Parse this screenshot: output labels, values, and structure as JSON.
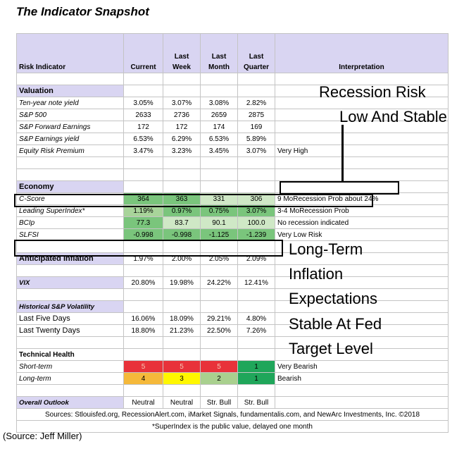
{
  "title": "The Indicator Snapshot",
  "source_note": "(Source: Jeff Miller)",
  "headers": {
    "risk_indicator": "Risk Indicator",
    "current": "Current",
    "last_week": [
      "Last",
      "Week"
    ],
    "last_month": [
      "Last",
      "Month"
    ],
    "last_quarter": [
      "Last",
      "Quarter"
    ],
    "interpretation": "Interpretation"
  },
  "sections": {
    "valuation": "Valuation",
    "economy": "Economy",
    "anticipated_inflation": "Anticipated Inflation",
    "vix": "VIX",
    "historical_volatility": "Historical S&P Volatility",
    "technical_health": "Technical Health",
    "overall_outlook": "Overall Outlook"
  },
  "valuation_rows": [
    {
      "label": "Ten-year note yield",
      "current": "3.05%",
      "week": "3.07%",
      "month": "3.08%",
      "quarter": "2.82%",
      "interp": ""
    },
    {
      "label": "S&P 500",
      "current": "2633",
      "week": "2736",
      "month": "2659",
      "quarter": "2875",
      "interp": ""
    },
    {
      "label": "S&P Forward Earnings",
      "current": "172",
      "week": "172",
      "month": "174",
      "quarter": "169",
      "interp": ""
    },
    {
      "label": "S&P Earnings yield",
      "current": "6.53%",
      "week": "6.29%",
      "month": "6.53%",
      "quarter": "5.89%",
      "interp": ""
    },
    {
      "label": "Equity Risk Premium",
      "current": "3.47%",
      "week": "3.23%",
      "month": "3.45%",
      "quarter": "3.07%",
      "interp": "Very High"
    }
  ],
  "economy_rows": [
    {
      "label": "C-Score",
      "current": "364",
      "week": "363",
      "month": "331",
      "quarter": "306",
      "interp": "9 MoRecession Prob about 24%"
    },
    {
      "label": "Leading SuperIndex*",
      "current": "1.19%",
      "week": "0.97%",
      "month": "0.75%",
      "quarter": "3.07%",
      "interp": "3-4 MoRecession Prob"
    },
    {
      "label": "BCIp",
      "current": "77.3",
      "week": "83.7",
      "month": "90.1",
      "quarter": "100.0",
      "interp": "No recession indicated"
    },
    {
      "label": "SLFSI",
      "current": "-0.998",
      "week": "-0.998",
      "month": "-1.125",
      "quarter": "-1.239",
      "interp": "Very Low Risk"
    }
  ],
  "inflation_row": {
    "current": "1.97%",
    "week": "2.00%",
    "month": "2.05%",
    "quarter": "2.09%"
  },
  "vix_row": {
    "current": "20.80%",
    "week": "19.98%",
    "month": "24.22%",
    "quarter": "12.41%"
  },
  "volatility_rows": [
    {
      "label": "Last Five Days",
      "current": "16.06%",
      "week": "18.09%",
      "month": "29.21%",
      "quarter": "4.80%"
    },
    {
      "label": "Last Twenty Days",
      "current": "18.80%",
      "week": "21.23%",
      "month": "22.50%",
      "quarter": "7.26%"
    }
  ],
  "technical_rows": [
    {
      "label": "Short-term",
      "current": "5",
      "week": "5",
      "month": "5",
      "quarter": "1",
      "interp": "Very Bearish"
    },
    {
      "label": "Long-term",
      "current": "4",
      "week": "3",
      "month": "2",
      "quarter": "1",
      "interp": "Bearish"
    }
  ],
  "outlook_row": {
    "current": "Neutral",
    "week": "Neutral",
    "month": "Str. Bull",
    "quarter": "Str. Bull"
  },
  "footer": {
    "sources": "Sources: Stlouisfed.org, RecessionAlert.com, iMarket Signals, fundamentalis.com, and NewArc Investments, Inc. ©2018",
    "note": "*SuperIndex is the public value, delayed one month"
  },
  "annotations": {
    "recession_line1": "Recession Risk",
    "recession_line2": "Low And Stable",
    "inflation_line1": "Long-Term",
    "inflation_line2": "Inflation",
    "inflation_line3": "Expectations",
    "inflation_line4": "Stable At Fed",
    "inflation_line5": "Target Level"
  },
  "colors": {
    "header_bg": "#d9d5f2",
    "green": "#7ac57c",
    "red": "#e8323a",
    "orange": "#f5b93a",
    "yellow": "#fff700",
    "dark_green": "#1fa65a"
  }
}
